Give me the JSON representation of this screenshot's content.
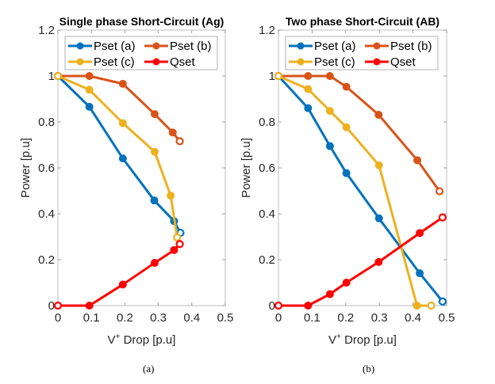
{
  "captions": [
    "(a)",
    "(b)"
  ],
  "colors": {
    "Pset (a)": "#0072BD",
    "Pset (b)": "#D95319",
    "Pset (c)": "#EDB120",
    "Qset": "#FF0000"
  },
  "chart_data": [
    {
      "type": "line",
      "title": "Single phase Short-Circuit (Ag)",
      "xlabel": "V+ Drop [p.u]",
      "ylabel": "Power [p.u]",
      "xlim": [
        0,
        0.5
      ],
      "ylim": [
        0,
        1.2
      ],
      "xticks": [
        "0",
        "0.1",
        "0.2",
        "0.3",
        "0.4",
        "0.5"
      ],
      "yticks": [
        "0",
        "0.2",
        "0.4",
        "0.6",
        "0.8",
        "1",
        "1.2"
      ],
      "grid": false,
      "legend_position": "top",
      "legend": [
        "Pset (a)",
        "Pset (b)",
        "Pset (c)",
        "Qset"
      ],
      "series": [
        {
          "name": "Pset (a)",
          "x": [
            0,
            0.094,
            0.194,
            0.288,
            0.347,
            0.366
          ],
          "y": [
            1.0,
            0.866,
            0.641,
            0.458,
            0.368,
            0.317
          ]
        },
        {
          "name": "Pset (b)",
          "x": [
            0,
            0.094,
            0.194,
            0.289,
            0.343,
            0.364
          ],
          "y": [
            1.0,
            1.0,
            0.966,
            0.834,
            0.754,
            0.716
          ]
        },
        {
          "name": "Pset (c)",
          "x": [
            0,
            0.094,
            0.194,
            0.289,
            0.337,
            0.356
          ],
          "y": [
            1.0,
            0.94,
            0.795,
            0.67,
            0.479,
            0.297
          ]
        },
        {
          "name": "Qset",
          "x": [
            0,
            0.094,
            0.194,
            0.289,
            0.347,
            0.364
          ],
          "y": [
            0,
            0,
            0.092,
            0.186,
            0.242,
            0.268
          ]
        }
      ]
    },
    {
      "type": "line",
      "title": "Two phase Short-Circuit (AB)",
      "xlabel": "V+ Drop [p.u]",
      "ylabel": "Power [p.u]",
      "xlim": [
        0,
        0.5
      ],
      "ylim": [
        0,
        1.2
      ],
      "xticks": [
        "0",
        "0.1",
        "0.2",
        "0.3",
        "0.4",
        "0.5"
      ],
      "yticks": [
        "0",
        "0.2",
        "0.4",
        "0.6",
        "0.8",
        "1",
        "1.2"
      ],
      "grid": false,
      "legend_position": "top",
      "legend": [
        "Pset (a)",
        "Pset (b)",
        "Pset (c)",
        "Qset"
      ],
      "series": [
        {
          "name": "Pset (a)",
          "x": [
            0,
            0.088,
            0.153,
            0.202,
            0.299,
            0.42,
            0.488
          ],
          "y": [
            1.0,
            0.86,
            0.695,
            0.577,
            0.38,
            0.141,
            0.018
          ]
        },
        {
          "name": "Pset (b)",
          "x": [
            0,
            0.088,
            0.153,
            0.202,
            0.298,
            0.413,
            0.479
          ],
          "y": [
            1.0,
            1.0,
            1.0,
            0.953,
            0.831,
            0.633,
            0.498
          ]
        },
        {
          "name": "Pset (c)",
          "x": [
            0,
            0.088,
            0.153,
            0.202,
            0.299,
            0.412,
            0.454
          ],
          "y": [
            1.0,
            0.943,
            0.848,
            0.777,
            0.611,
            0,
            0
          ]
        },
        {
          "name": "Qset",
          "x": [
            0,
            0.088,
            0.153,
            0.202,
            0.298,
            0.42,
            0.488
          ],
          "y": [
            0,
            0,
            0.05,
            0.1,
            0.19,
            0.316,
            0.384
          ]
        }
      ]
    }
  ]
}
